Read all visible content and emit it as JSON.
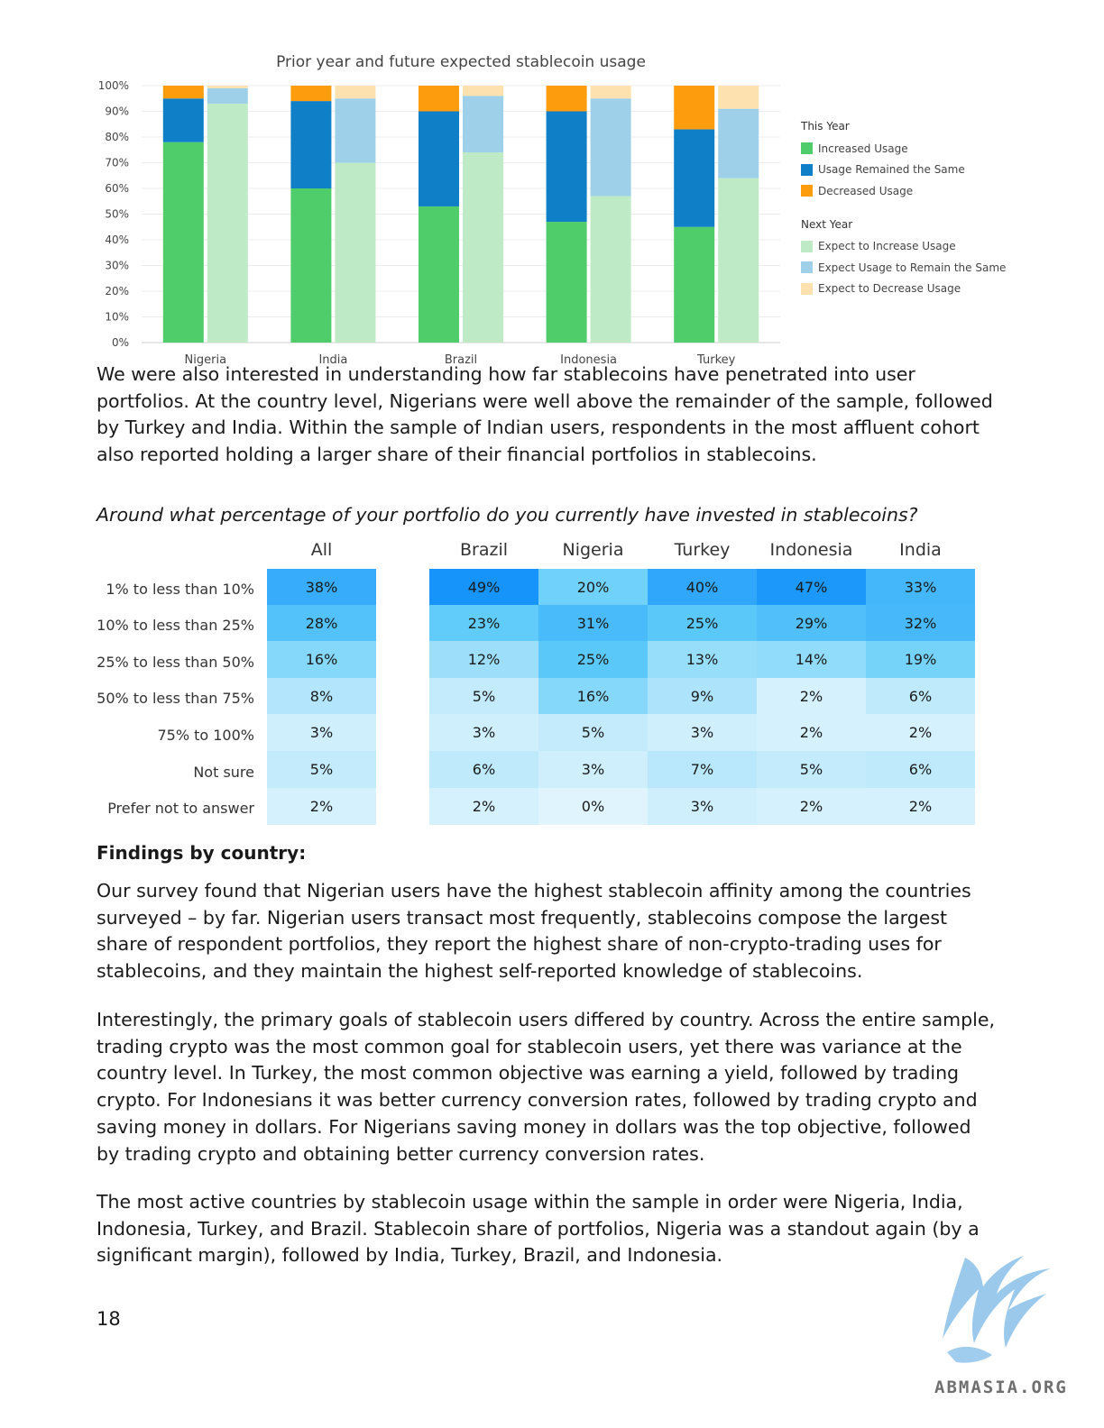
{
  "chart_data": {
    "type": "bar",
    "stacked": true,
    "title": "Prior year and future expected stablecoin usage",
    "categories": [
      "Nigeria",
      "India",
      "Brazil",
      "Indonesia",
      "Turkey"
    ],
    "yticks": [
      "100%",
      "90%",
      "80%",
      "70%",
      "60%",
      "50%",
      "40%",
      "30%",
      "20%",
      "10%",
      "0%"
    ],
    "ylim": [
      0,
      100
    ],
    "grid": true,
    "legend_position": "right",
    "groups": [
      {
        "name": "This Year",
        "series": [
          {
            "name": "Increased Usage",
            "color": "#4fcd6a",
            "values": [
              78,
              60,
              53,
              47,
              45
            ]
          },
          {
            "name": "Usage Remained the Same",
            "color": "#0f7fc7",
            "values": [
              17,
              34,
              37,
              43,
              38
            ]
          },
          {
            "name": "Decreased Usage",
            "color": "#fd9c0c",
            "values": [
              5,
              6,
              10,
              10,
              17
            ]
          }
        ]
      },
      {
        "name": "Next Year",
        "series": [
          {
            "name": "Expect to Increase Usage",
            "color": "#bfeac6",
            "values": [
              93,
              70,
              74,
              57,
              64
            ]
          },
          {
            "name": "Expect Usage to Remain the Same",
            "color": "#9fd0ea",
            "values": [
              6,
              25,
              22,
              38,
              27
            ]
          },
          {
            "name": "Expect to Decrease Usage",
            "color": "#fde1ae",
            "values": [
              1,
              5,
              4,
              5,
              9
            ]
          }
        ]
      }
    ]
  },
  "paragraphs": {
    "intro": "We were also interested in understanding how far stablecoins have penetrated into user portfolios. At the country level, Nigerians were well above the remainder of the sample, followed by Turkey and India. Within the sample of Indian users, respondents in the most affluent cohort also reported holding a larger share of their financial portfolios in stablecoins.",
    "findings_1": "Our survey found that Nigerian users have the highest stablecoin affinity among the countries surveyed – by far. Nigerian users transact most frequently, stablecoins compose the largest share of respondent portfolios, they report the highest share of non-crypto-trading uses for stablecoins, and they maintain the highest self-reported knowledge of stablecoins.",
    "findings_2": "Interestingly, the primary goals of stablecoin users differed by country. Across the entire sample, trading crypto was the most common goal for stablecoin users, yet there was variance at the country level. In Turkey, the most common objective was earning a yield, followed by trading crypto. For Indonesians it was better currency conversion rates, followed by trading crypto and saving money in dollars. For Nigerians saving money in dollars was the top objective, followed by trading crypto and obtaining better currency conversion rates.",
    "findings_3": "The most active countries by stablecoin usage within the sample in order were Nigeria, India, Indonesia, Turkey, and Brazil. Stablecoin share of portfolios, Nigeria was a standout again (by a significant margin), followed by India, Turkey, Brazil, and Indonesia."
  },
  "question": "Around what percentage of your portfolio do you currently have invested in stablecoins?",
  "heatmap": {
    "columns": [
      "All",
      "Brazil",
      "Nigeria",
      "Turkey",
      "Indonesia",
      "India"
    ],
    "rows": [
      {
        "label": "1% to less than 10%",
        "values": [
          "38%",
          "49%",
          "20%",
          "40%",
          "47%",
          "33%"
        ]
      },
      {
        "label": "10% to less than 25%",
        "values": [
          "28%",
          "23%",
          "31%",
          "25%",
          "29%",
          "32%"
        ]
      },
      {
        "label": "25% to less than 50%",
        "values": [
          "16%",
          "12%",
          "25%",
          "13%",
          "14%",
          "19%"
        ]
      },
      {
        "label": "50% to less than 75%",
        "values": [
          "8%",
          "5%",
          "16%",
          "9%",
          "2%",
          "6%"
        ]
      },
      {
        "label": "75% to 100%",
        "values": [
          "3%",
          "3%",
          "5%",
          "3%",
          "2%",
          "2%"
        ]
      },
      {
        "label": "Not sure",
        "values": [
          "5%",
          "6%",
          "3%",
          "7%",
          "5%",
          "6%"
        ]
      },
      {
        "label": "Prefer not to answer",
        "values": [
          "2%",
          "2%",
          "0%",
          "3%",
          "2%",
          "2%"
        ]
      }
    ]
  },
  "findings_title": "Findings by country:",
  "page_number": "18",
  "watermark": "ABMASIA.ORG"
}
